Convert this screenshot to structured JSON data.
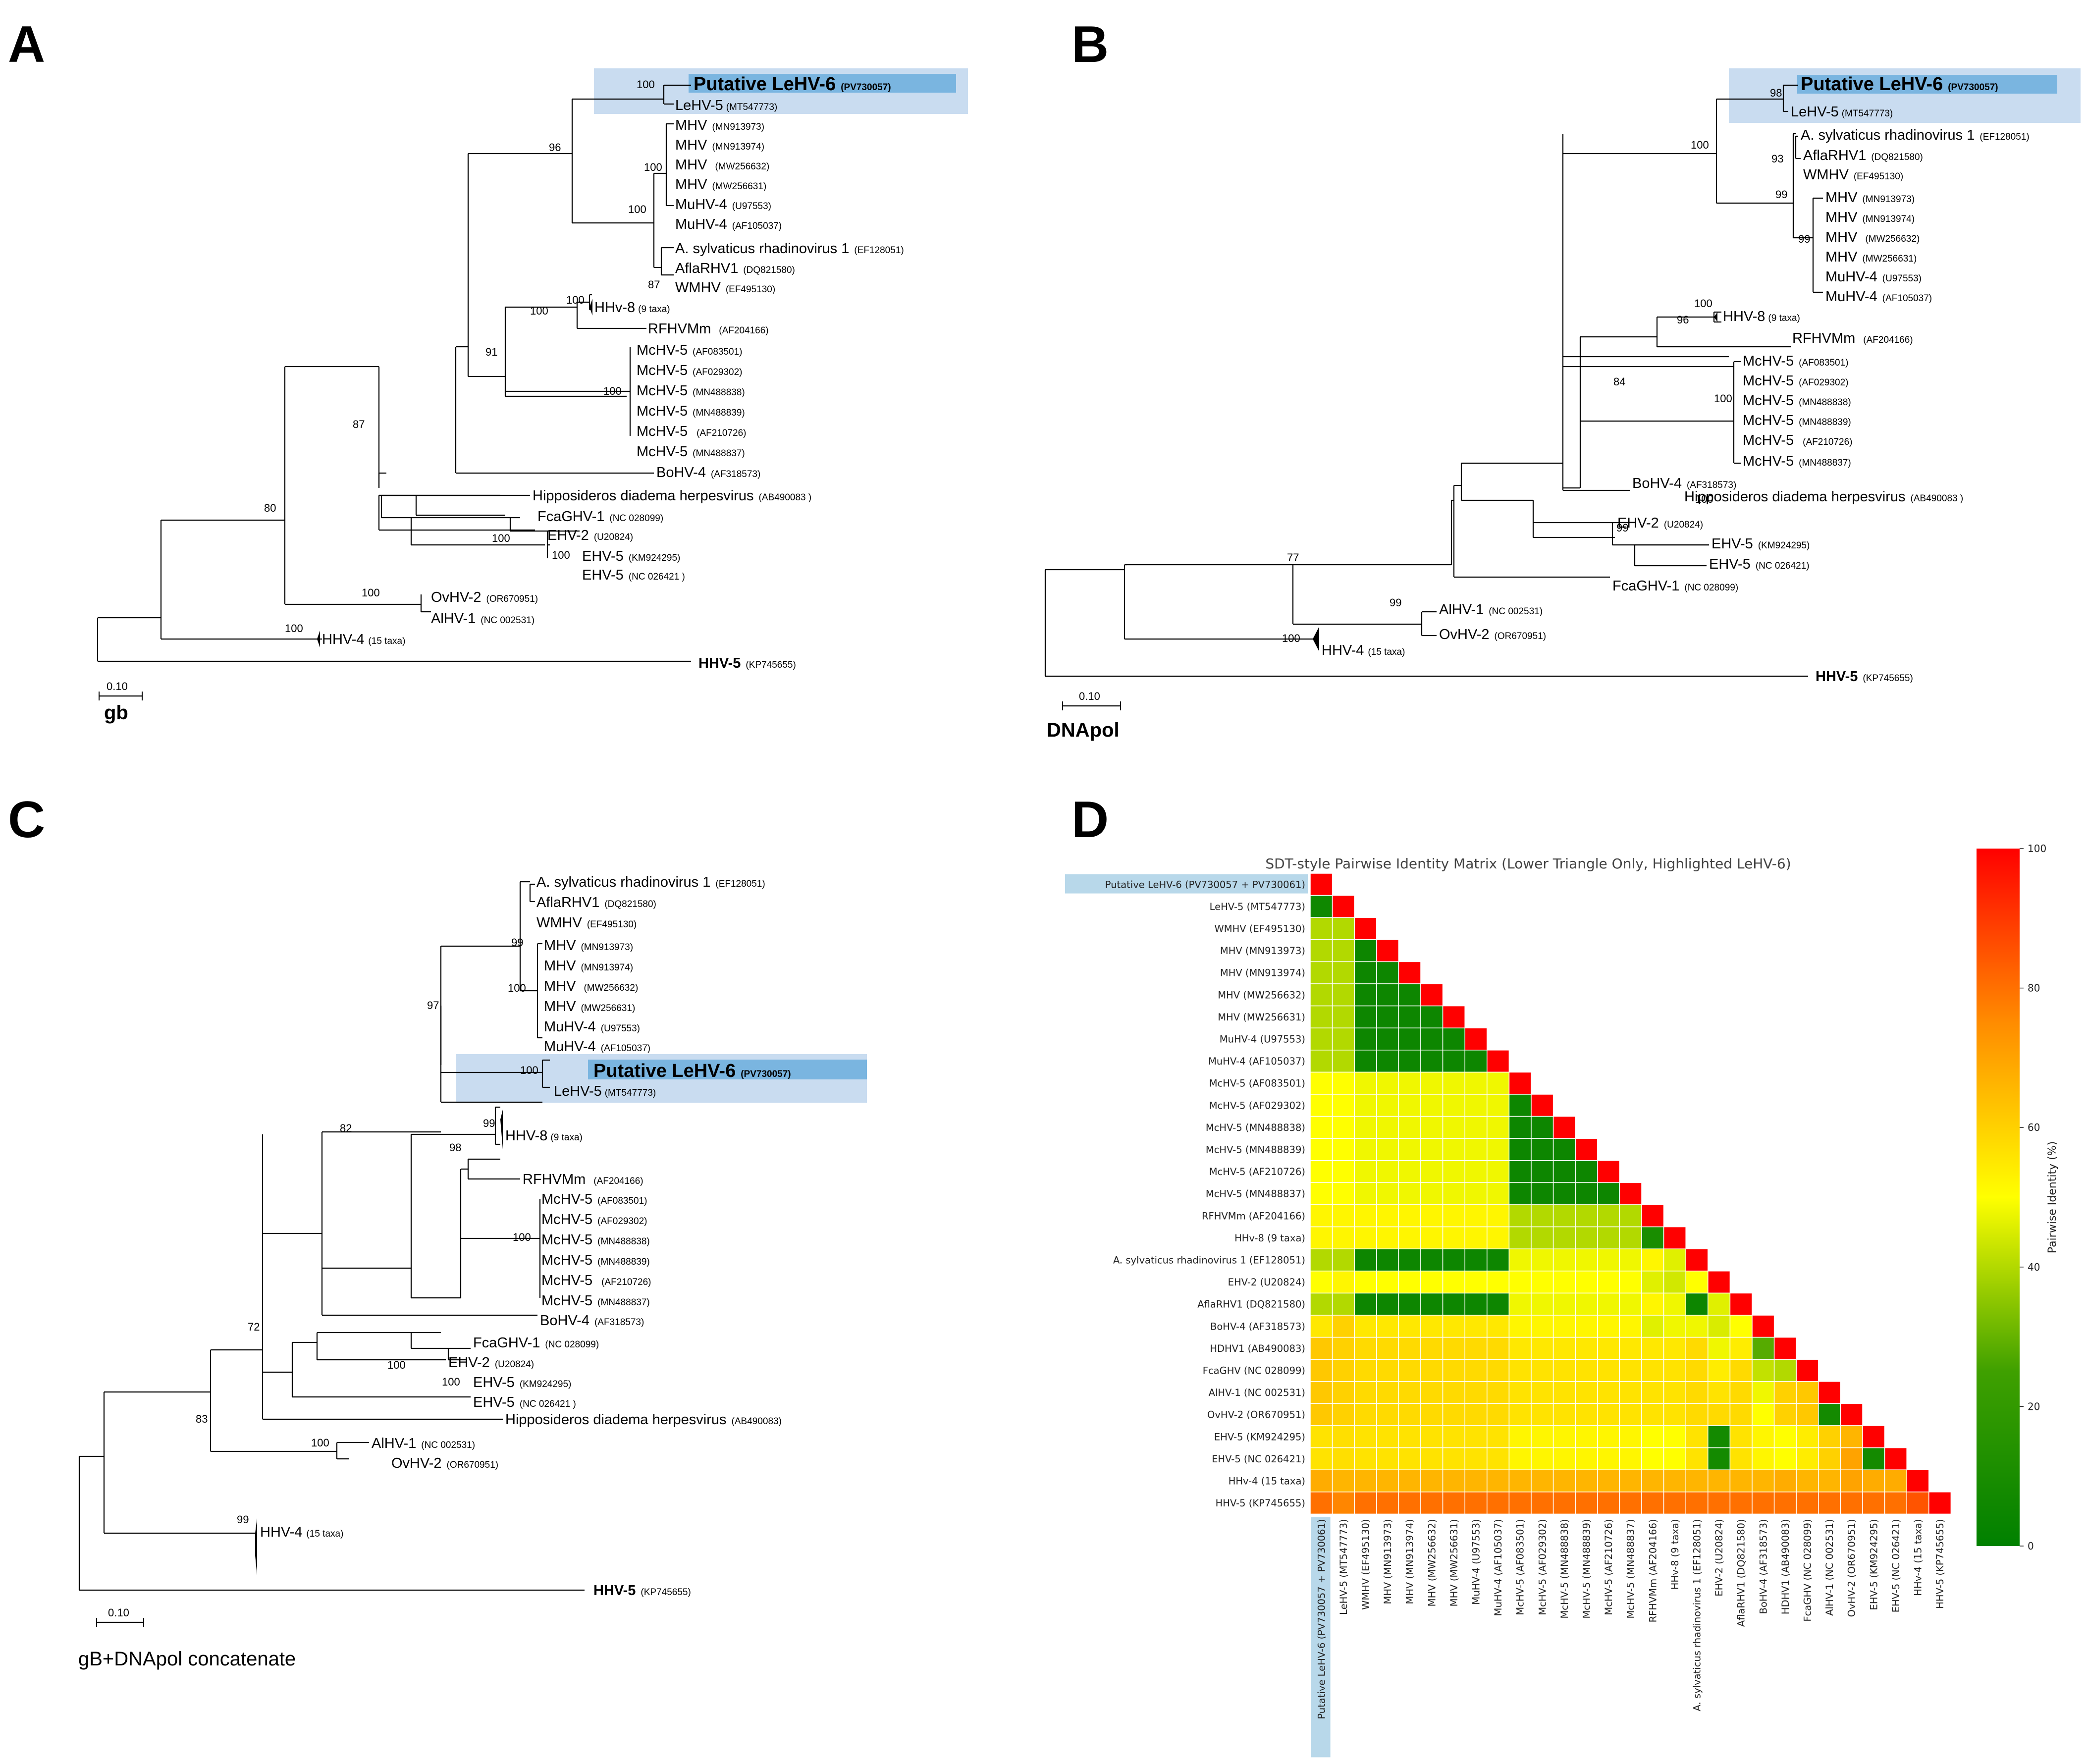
{
  "panels": {
    "A": {
      "label": "A",
      "gene": "gb",
      "scale": "0.10",
      "taxa": [
        {
          "name": "Putative LeHV-6",
          "acc": "(PV730057)"
        },
        {
          "name": "LeHV-5",
          "acc": "(MT547773)"
        },
        {
          "name": "MHV",
          "acc": "(MN913973)"
        },
        {
          "name": "MHV",
          "acc": "(MN913974)"
        },
        {
          "name": "MHV",
          "acc": "(MW256632)"
        },
        {
          "name": "MHV",
          "acc": "(MW256631)"
        },
        {
          "name": "MuHV-4",
          "acc": "(U97553)"
        },
        {
          "name": "MuHV-4",
          "acc": "(AF105037)"
        },
        {
          "name": "A. sylvaticus rhadinovirus 1",
          "acc": "(EF128051)"
        },
        {
          "name": "AflaRHV1",
          "acc": "(DQ821580)"
        },
        {
          "name": "WMHV",
          "acc": "(EF495130)"
        },
        {
          "name": "HHv-8",
          "acc": "(9 taxa)"
        },
        {
          "name": "RFHVMm",
          "acc": "(AF204166)"
        },
        {
          "name": "McHV-5",
          "acc": "(AF083501)"
        },
        {
          "name": "McHV-5",
          "acc": "(AF029302)"
        },
        {
          "name": "McHV-5",
          "acc": "(MN488838)"
        },
        {
          "name": "McHV-5",
          "acc": "(MN488839)"
        },
        {
          "name": "McHV-5",
          "acc": "(AF210726)"
        },
        {
          "name": "McHV-5",
          "acc": "(MN488837)"
        },
        {
          "name": "BoHV-4",
          "acc": "(AF318573)"
        },
        {
          "name": "Hipposideros diadema herpesvirus",
          "acc": "(AB490083 )"
        },
        {
          "name": "FcaGHV-1",
          "acc": "(NC 028099)"
        },
        {
          "name": "EHV-2",
          "acc": "(U20824)"
        },
        {
          "name": "EHV-5",
          "acc": "(KM924295)"
        },
        {
          "name": "EHV-5",
          "acc": "(NC 026421 )"
        },
        {
          "name": "OvHV-2",
          "acc": "(OR670951)"
        },
        {
          "name": "AlHV-1",
          "acc": "(NC 002531)"
        },
        {
          "name": "HHV-4",
          "acc": "(15 taxa)"
        },
        {
          "name": "HHV-5",
          "acc": "(KP745655)"
        }
      ],
      "bootstraps": [
        "100",
        "96",
        "100",
        "100",
        "87",
        "100",
        "100",
        "91",
        "100",
        "87",
        "80",
        "100",
        "100",
        "100",
        "100"
      ]
    },
    "B": {
      "label": "B",
      "gene": "DNApol",
      "scale": "0.10",
      "taxa": [
        {
          "name": "Putative LeHV-6",
          "acc": "(PV730057)"
        },
        {
          "name": "LeHV-5",
          "acc": "(MT547773)"
        },
        {
          "name": "A. sylvaticus rhadinovirus 1",
          "acc": "(EF128051)"
        },
        {
          "name": "AflaRHV1",
          "acc": "(DQ821580)"
        },
        {
          "name": "WMHV",
          "acc": "(EF495130)"
        },
        {
          "name": "MHV",
          "acc": "(MN913973)"
        },
        {
          "name": "MHV",
          "acc": "(MN913974)"
        },
        {
          "name": "MHV",
          "acc": "(MW256632)"
        },
        {
          "name": "MHV",
          "acc": "(MW256631)"
        },
        {
          "name": "MuHV-4",
          "acc": "(U97553)"
        },
        {
          "name": "MuHV-4",
          "acc": "(AF105037)"
        },
        {
          "name": "HHV-8",
          "acc": "(9 taxa)"
        },
        {
          "name": "RFHVMm",
          "acc": "(AF204166)"
        },
        {
          "name": "McHV-5",
          "acc": "(AF083501)"
        },
        {
          "name": "McHV-5",
          "acc": "(AF029302)"
        },
        {
          "name": "McHV-5",
          "acc": "(MN488838)"
        },
        {
          "name": "McHV-5",
          "acc": "(MN488839)"
        },
        {
          "name": "McHV-5",
          "acc": "(AF210726)"
        },
        {
          "name": "McHV-5",
          "acc": "(MN488837)"
        },
        {
          "name": "BoHV-4",
          "acc": "(AF318573)"
        },
        {
          "name": "Hipposideros diadema herpesvirus",
          "acc": "(AB490083 )"
        },
        {
          "name": "EHV-2",
          "acc": "(U20824)"
        },
        {
          "name": "EHV-5",
          "acc": "(KM924295)"
        },
        {
          "name": "EHV-5",
          "acc": "(NC 026421)"
        },
        {
          "name": "FcaGHV-1",
          "acc": "(NC 028099)"
        },
        {
          "name": "AlHV-1",
          "acc": "(NC 002531)"
        },
        {
          "name": "OvHV-2",
          "acc": "(OR670951)"
        },
        {
          "name": "HHV-4",
          "acc": "(15 taxa)"
        },
        {
          "name": "HHV-5",
          "acc": "(KP745655)"
        }
      ],
      "bootstraps": [
        "98",
        "100",
        "93",
        "99",
        "99",
        "100",
        "96",
        "84",
        "100",
        "100",
        "99",
        "77",
        "99",
        "100"
      ]
    },
    "C": {
      "label": "C",
      "gene": "gB+DNApol concatenate",
      "scale": "0.10",
      "taxa": [
        {
          "name": "A. sylvaticus rhadinovirus 1",
          "acc": "(EF128051)"
        },
        {
          "name": "AflaRHV1",
          "acc": "(DQ821580)"
        },
        {
          "name": "WMHV",
          "acc": "(EF495130)"
        },
        {
          "name": "MHV",
          "acc": "(MN913973)"
        },
        {
          "name": "MHV",
          "acc": "(MN913974)"
        },
        {
          "name": "MHV",
          "acc": "(MW256632)"
        },
        {
          "name": "MHV",
          "acc": "(MW256631)"
        },
        {
          "name": "MuHV-4",
          "acc": "(U97553)"
        },
        {
          "name": "MuHV-4",
          "acc": "(AF105037)"
        },
        {
          "name": "Putative LeHV-6",
          "acc": "(PV730057)"
        },
        {
          "name": "LeHV-5",
          "acc": "(MT547773)"
        },
        {
          "name": "HHV-8",
          "acc": "(9 taxa)"
        },
        {
          "name": "RFHVMm",
          "acc": "(AF204166)"
        },
        {
          "name": "McHV-5",
          "acc": "(AF083501)"
        },
        {
          "name": "McHV-5",
          "acc": "(AF029302)"
        },
        {
          "name": "McHV-5",
          "acc": "(MN488838)"
        },
        {
          "name": "McHV-5",
          "acc": "(MN488839)"
        },
        {
          "name": "McHV-5",
          "acc": "(AF210726)"
        },
        {
          "name": "McHV-5",
          "acc": "(MN488837)"
        },
        {
          "name": "BoHV-4",
          "acc": "(AF318573)"
        },
        {
          "name": "FcaGHV-1",
          "acc": "(NC 028099)"
        },
        {
          "name": "EHV-2",
          "acc": "(U20824)"
        },
        {
          "name": "EHV-5",
          "acc": "(KM924295)"
        },
        {
          "name": "EHV-5",
          "acc": "(NC 026421 )"
        },
        {
          "name": "Hipposideros diadema herpesvirus",
          "acc": "(AB490083)"
        },
        {
          "name": "AlHV-1",
          "acc": "(NC 002531)"
        },
        {
          "name": "OvHV-2",
          "acc": "(OR670951)"
        },
        {
          "name": "HHV-4",
          "acc": "(15 taxa)"
        },
        {
          "name": "HHV-5",
          "acc": "(KP745655)"
        }
      ],
      "bootstraps": [
        "99",
        "100",
        "97",
        "100",
        "99",
        "98",
        "100",
        "82",
        "100",
        "100",
        "72",
        "83",
        "100",
        "99"
      ]
    },
    "D": {
      "label": "D",
      "title": "SDT-style Pairwise Identity Matrix (Lower Triangle Only, Highlighted LeHV-6)",
      "colorbar_label": "Pairwise Identity (%)",
      "colorbar_ticks": [
        "0",
        "20",
        "40",
        "60",
        "80",
        "100"
      ],
      "colors": {
        "low": "#008000",
        "mid": "#ffff00",
        "high": "#ff0000",
        "highlight": "#b8d8ea"
      },
      "labels": [
        "Putative LeHV-6 (PV730057 + PV730061)",
        "LeHV-5 (MT547773)",
        "WMHV (EF495130)",
        "MHV (MN913973)",
        "MHV (MN913974)",
        "MHV  (MW256632)",
        "MHV (MW256631)",
        "MuHV-4 (U97553)",
        "MuHV-4 (AF105037)",
        "McHV-5 (AF083501)",
        "McHV-5 (AF029302)",
        "McHV-5 (MN488838)",
        "McHV-5 (MN488839)",
        "McHV-5  (AF210726)",
        "McHV-5 (MN488837)",
        "RFHVMm (AF204166)",
        "HHv-8 (9 taxa)",
        "A. sylvaticus rhadinovirus 1 (EF128051)",
        "EHV-2 (U20824)",
        "AflaRHV1 (DQ821580)",
        "BoHV-4 (AF318573)",
        "HDHV1 (AB490083)",
        "FcaGHV (NC 028099)",
        "AlHV-1 (NC 002531)",
        "OvHV-2 (OR670951)",
        "EHV-5 (KM924295)",
        "EHV-5 (NC 026421)",
        "HHv-4 (15 taxa)",
        "HHV-5 (KP745655)"
      ]
    }
  },
  "chart_data": {
    "type": "heatmap",
    "title": "SDT-style Pairwise Identity Matrix (Lower Triangle Only, Highlighted LeHV-6)",
    "colorbar_label": "Pairwise Identity (%)",
    "range": [
      0,
      100
    ],
    "groups": {
      "LeHV-6": [
        0
      ],
      "LeHV-5": [
        1
      ],
      "murine": [
        2,
        3,
        4,
        5,
        6,
        7,
        8,
        17,
        19
      ],
      "macaque": [
        9,
        10,
        11,
        12,
        13,
        14
      ],
      "hhv8like": [
        15,
        16
      ],
      "ehv2": [
        18
      ],
      "bov": [
        20
      ],
      "hdhv": [
        21
      ],
      "fca": [
        22
      ],
      "alhv1": [
        23
      ],
      "ovhv2": [
        24
      ],
      "ehv5": [
        25,
        26
      ],
      "hhv4": [
        27
      ],
      "hhv5": [
        28
      ]
    },
    "group_values": {
      "LeHV-5|LeHV-6": 6,
      "LeHV-6|murine": 40,
      "LeHV-5|murine": 40,
      "LeHV-6|macaque": 50,
      "LeHV-5|macaque": 50,
      "LeHV-6|hhv8like": 52,
      "LeHV-5|hhv8like": 52,
      "LeHV-6|ehv2": 50,
      "LeHV-5|ehv2": 52,
      "LeHV-6|bov": 55,
      "LeHV-5|bov": 60,
      "LeHV-6|hdhv": 62,
      "LeHV-5|hdhv": 60,
      "LeHV-6|fca": 62,
      "LeHV-5|fca": 60,
      "LeHV-6|alhv1": 62,
      "LeHV-5|alhv1": 60,
      "LeHV-6|ovhv2": 62,
      "LeHV-5|ovhv2": 60,
      "LeHV-6|ehv5": 56,
      "LeHV-5|ehv5": 57,
      "LeHV-6|hhv4": 68,
      "LeHV-5|hhv4": 66,
      "LeHV-6|hhv5": 80,
      "LeHV-5|hhv5": 76,
      "murine|murine": 5,
      "macaque|murine": 48,
      "hhv8like|murine": 52,
      "ehv2|murine": 50,
      "bov|murine": 55,
      "hdhv|murine": 58,
      "fca|murine": 58,
      "alhv1|murine": 58,
      "murine|ovhv2": 58,
      "ehv5|murine": 56,
      "hhv4|murine": 66,
      "hhv5|murine": 80,
      "macaque|macaque": 5,
      "hhv8like|macaque": 40,
      "ehv2|macaque": 50,
      "bov|macaque": 52,
      "hdhv|macaque": 55,
      "fca|macaque": 56,
      "alhv1|macaque": 56,
      "macaque|ovhv2": 56,
      "ehv5|macaque": 52,
      "hhv4|macaque": 66,
      "hhv5|macaque": 80,
      "hhv8like|hhv8like": 10,
      "ehv2|hhv8like": 46,
      "bov|hhv8like": 46,
      "hdhv|hhv8like": 55,
      "fca|hhv8like": 56,
      "alhv1|hhv8like": 56,
      "hhv8like|ovhv2": 56,
      "ehv5|hhv8like": 50,
      "hhv4|hhv8like": 66,
      "hhv5|hhv8like": 80,
      "bov|ehv2": 45,
      "ehv2|hdhv": 48,
      "ehv2|fca": 50,
      "alhv1|ehv2": 56,
      "ehv2|ovhv2": 58,
      "ehv2|ehv5": 8,
      "ehv2|hhv4": 66,
      "ehv2|hhv5": 80,
      "bov|hdhv": 28,
      "bov|fca": 42,
      "alhv1|bov": 48,
      "bov|ovhv2": 50,
      "bov|ehv5": 52,
      "bov|hhv4": 66,
      "bov|hhv5": 80,
      "fca|hdhv": 40,
      "alhv1|hdhv": 60,
      "hdhv|ovhv2": 60,
      "ehv5|hdhv": 50,
      "hdhv|hhv4": 68,
      "hdhv|hhv5": 80,
      "alhv1|fca": 62,
      "fca|ovhv2": 62,
      "ehv5|fca": 54,
      "fca|hhv4": 66,
      "fca|hhv5": 80,
      "alhv1|ovhv2": 8,
      "alhv1|ehv5": 60,
      "alhv1|hhv4": 66,
      "alhv1|hhv5": 80,
      "ehv5|ovhv2": 58,
      "hhv4|ovhv2": 70,
      "hhv5|ovhv2": 80,
      "ehv5|ehv5": 8,
      "ehv5|hhv4": 68,
      "ehv5|hhv5": 80,
      "hhv4|hhv5": 85
    },
    "overrides": [
      {
        "row": 17,
        "col": 16,
        "value": 46
      },
      {
        "row": 18,
        "col": 16,
        "value": 44
      },
      {
        "row": 18,
        "col": 17,
        "value": 50
      },
      {
        "row": 19,
        "col": 16,
        "value": 48
      },
      {
        "row": 19,
        "col": 18,
        "value": 46
      },
      {
        "row": 20,
        "col": 16,
        "value": 48
      },
      {
        "row": 20,
        "col": 17,
        "value": 48
      },
      {
        "row": 20,
        "col": 19,
        "value": 50
      },
      {
        "row": 21,
        "col": 18,
        "value": 48
      },
      {
        "row": 21,
        "col": 19,
        "value": 54
      },
      {
        "row": 22,
        "col": 18,
        "value": 54
      },
      {
        "row": 22,
        "col": 19,
        "value": 58
      },
      {
        "row": 25,
        "col": 24,
        "value": 66
      },
      {
        "row": 26,
        "col": 24,
        "value": 70
      }
    ],
    "diagonal": 100
  }
}
